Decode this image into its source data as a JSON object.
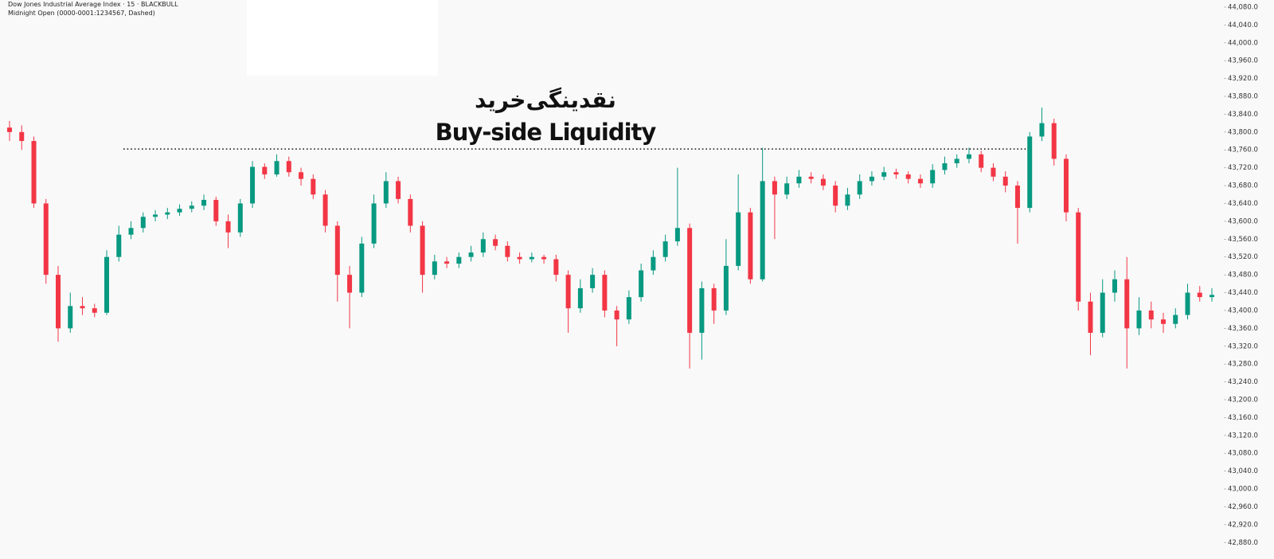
{
  "chart_data": {
    "type": "candlestick",
    "title": "Dow Jones Industrial Average Index · 15 · BLACKBULL",
    "subtitle": "Midnight Open (0000-0001:1234567, Dashed)",
    "annotations": [
      "نقدینگی‌خرید",
      "Buy-side Liquidity"
    ],
    "liquidity_level": 43762,
    "up_color": "#089981",
    "down_color": "#f23645",
    "ylim": [
      42843,
      44096
    ],
    "yticks": [
      {
        "value": 44080,
        "label": "44,080.0"
      },
      {
        "value": 44040,
        "label": "44,040.0"
      },
      {
        "value": 44000,
        "label": "44,000.0"
      },
      {
        "value": 43960,
        "label": "43,960.0"
      },
      {
        "value": 43920,
        "label": "43,920.0"
      },
      {
        "value": 43880,
        "label": "43,880.0"
      },
      {
        "value": 43840,
        "label": "43,840.0"
      },
      {
        "value": 43800,
        "label": "43,800.0"
      },
      {
        "value": 43760,
        "label": "43,760.0"
      },
      {
        "value": 43720,
        "label": "43,720.0"
      },
      {
        "value": 43680,
        "label": "43,680.0"
      },
      {
        "value": 43640,
        "label": "43,640.0"
      },
      {
        "value": 43600,
        "label": "43,600.0"
      },
      {
        "value": 43560,
        "label": "43,560.0"
      },
      {
        "value": 43520,
        "label": "43,520.0"
      },
      {
        "value": 43480,
        "label": "43,480.0"
      },
      {
        "value": 43440,
        "label": "43,440.0"
      },
      {
        "value": 43400,
        "label": "43,400.0"
      },
      {
        "value": 43360,
        "label": "43,360.0"
      },
      {
        "value": 43320,
        "label": "43,320.0"
      },
      {
        "value": 43280,
        "label": "43,280.0"
      },
      {
        "value": 43240,
        "label": "43,240.0"
      },
      {
        "value": 43200,
        "label": "43,200.0"
      },
      {
        "value": 43160,
        "label": "43,160.0"
      },
      {
        "value": 43120,
        "label": "43,120.0"
      },
      {
        "value": 43080,
        "label": "43,080.0"
      },
      {
        "value": 43040,
        "label": "43,040.0"
      },
      {
        "value": 43000,
        "label": "43,000.0"
      },
      {
        "value": 42960,
        "label": "42,960.0"
      },
      {
        "value": 42920,
        "label": "42,920.0"
      },
      {
        "value": 42880,
        "label": "42,880.0"
      }
    ],
    "open": [
      43810,
      43800,
      43780,
      43640,
      43480,
      43360,
      43410,
      43405,
      43395,
      43520,
      43570,
      43585,
      43610,
      43615,
      43620,
      43628,
      43635,
      43648,
      43600,
      43575,
      43640,
      43722,
      43705,
      43735,
      43710,
      43695,
      43660,
      43590,
      43480,
      43440,
      43550,
      43640,
      43690,
      43650,
      43590,
      43480,
      43510,
      43505,
      43520,
      43530,
      43560,
      43545,
      43520,
      43515,
      43520,
      43515,
      43480,
      43405,
      43450,
      43480,
      43400,
      43380,
      43430,
      43490,
      43520,
      43555,
      43585,
      43350,
      43450,
      43400,
      43500,
      43620,
      43470,
      43690,
      43660,
      43685,
      43700,
      43695,
      43680,
      43635,
      43660,
      43690,
      43700,
      43710,
      43705,
      43695,
      43685,
      43715,
      43730,
      43740,
      43750,
      43720,
      43700,
      43680,
      43630,
      43790,
      43820,
      43740,
      43620,
      43420,
      43350,
      43440,
      43470,
      43360,
      43400,
      43380,
      43370,
      43390,
      43440,
      43430
    ],
    "high": [
      43825,
      43815,
      43790,
      43650,
      43500,
      43440,
      43430,
      43415,
      43535,
      43590,
      43600,
      43620,
      43625,
      43630,
      43638,
      43645,
      43660,
      43655,
      43615,
      43650,
      43735,
      43730,
      43750,
      43745,
      43720,
      43705,
      43670,
      43600,
      43500,
      43565,
      43660,
      43710,
      43700,
      43660,
      43600,
      43525,
      43520,
      43530,
      43545,
      43575,
      43570,
      43555,
      43530,
      43530,
      43525,
      43525,
      43490,
      43470,
      43495,
      43490,
      43410,
      43445,
      43505,
      43535,
      43570,
      43720,
      43595,
      43465,
      43460,
      43560,
      43705,
      43630,
      43765,
      43700,
      43700,
      43715,
      43710,
      43705,
      43690,
      43675,
      43705,
      43712,
      43722,
      43718,
      43712,
      43705,
      43728,
      43745,
      43750,
      43765,
      43758,
      43730,
      43712,
      43690,
      43800,
      43855,
      43830,
      43750,
      43630,
      43440,
      43470,
      43490,
      43520,
      43430,
      43420,
      43395,
      43405,
      43460,
      43455,
      43450
    ],
    "low": [
      43780,
      43760,
      43630,
      43460,
      43330,
      43350,
      43390,
      43385,
      43390,
      43510,
      43560,
      43575,
      43600,
      43605,
      43612,
      43620,
      43625,
      43590,
      43540,
      43565,
      43630,
      43695,
      43700,
      43700,
      43680,
      43650,
      43575,
      43420,
      43360,
      43430,
      43540,
      43630,
      43640,
      43575,
      43440,
      43470,
      43495,
      43495,
      43510,
      43520,
      43535,
      43510,
      43505,
      43508,
      43505,
      43465,
      43350,
      43395,
      43440,
      43385,
      43320,
      43370,
      43420,
      43480,
      43510,
      43545,
      43270,
      43290,
      43370,
      43390,
      43490,
      43460,
      43465,
      43560,
      43650,
      43675,
      43685,
      43670,
      43620,
      43625,
      43650,
      43680,
      43692,
      43695,
      43685,
      43675,
      43675,
      43705,
      43720,
      43730,
      43710,
      43690,
      43665,
      43550,
      43620,
      43780,
      43725,
      43600,
      43400,
      43300,
      43340,
      43420,
      43270,
      43345,
      43360,
      43350,
      43360,
      43380,
      43420,
      43420
    ],
    "close": [
      43800,
      43780,
      43640,
      43480,
      43360,
      43410,
      43405,
      43395,
      43520,
      43570,
      43585,
      43610,
      43615,
      43620,
      43628,
      43635,
      43648,
      43600,
      43575,
      43640,
      43722,
      43705,
      43735,
      43710,
      43695,
      43660,
      43590,
      43480,
      43440,
      43550,
      43640,
      43690,
      43650,
      43590,
      43480,
      43510,
      43505,
      43520,
      43530,
      43560,
      43545,
      43520,
      43515,
      43520,
      43515,
      43480,
      43405,
      43450,
      43480,
      43400,
      43380,
      43430,
      43490,
      43520,
      43555,
      43585,
      43350,
      43450,
      43400,
      43500,
      43620,
      43470,
      43690,
      43660,
      43685,
      43700,
      43695,
      43680,
      43635,
      43660,
      43690,
      43700,
      43710,
      43705,
      43695,
      43685,
      43715,
      43730,
      43740,
      43750,
      43720,
      43700,
      43680,
      43630,
      43790,
      43820,
      43740,
      43620,
      43420,
      43350,
      43440,
      43470,
      43360,
      43400,
      43380,
      43370,
      43390,
      43440,
      43430,
      43435
    ]
  }
}
